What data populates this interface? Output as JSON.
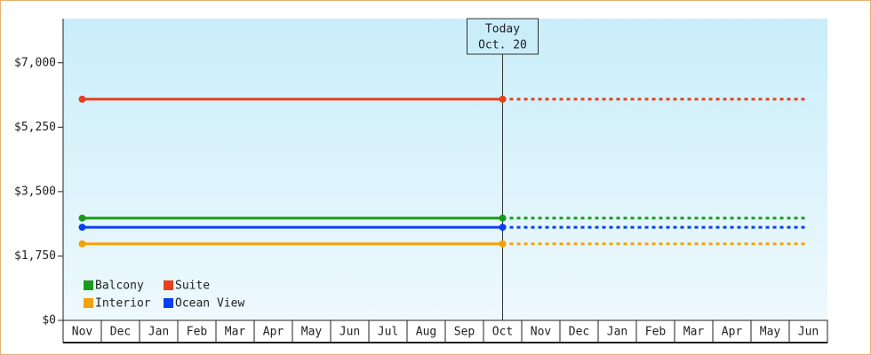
{
  "chart_data": {
    "type": "line",
    "categories": [
      "Nov",
      "Dec",
      "Jan",
      "Feb",
      "Mar",
      "Apr",
      "May",
      "Jun",
      "Jul",
      "Aug",
      "Sep",
      "Oct",
      "Nov",
      "Dec",
      "Jan",
      "Feb",
      "Mar",
      "Apr",
      "May",
      "Jun"
    ],
    "series": [
      {
        "name": "Balcony",
        "color": "#1a9a1a",
        "values": [
          2780,
          2780,
          2780,
          2780,
          2780,
          2780,
          2780,
          2780,
          2780,
          2780,
          2780,
          2780,
          2780,
          2780,
          2780,
          2780,
          2780,
          2780,
          2780,
          2780
        ]
      },
      {
        "name": "Suite",
        "color": "#e8401c",
        "values": [
          6010,
          6010,
          6010,
          6010,
          6010,
          6010,
          6010,
          6010,
          6010,
          6010,
          6010,
          6010,
          6010,
          6010,
          6010,
          6010,
          6010,
          6010,
          6010,
          6010
        ]
      },
      {
        "name": "Interior",
        "color": "#f5a20a",
        "values": [
          2080,
          2080,
          2080,
          2080,
          2080,
          2080,
          2080,
          2080,
          2080,
          2080,
          2080,
          2080,
          2080,
          2080,
          2080,
          2080,
          2080,
          2080,
          2080,
          2080
        ]
      },
      {
        "name": "Ocean View",
        "color": "#0a3ef5",
        "values": [
          2530,
          2530,
          2530,
          2530,
          2530,
          2530,
          2530,
          2530,
          2530,
          2530,
          2530,
          2530,
          2530,
          2530,
          2530,
          2530,
          2530,
          2530,
          2530,
          2530
        ]
      }
    ],
    "annotation": [
      "Today",
      "Oct. 20"
    ],
    "ylim": [
      0,
      8200
    ],
    "yticks": [
      {
        "value": 0,
        "label": "$0"
      },
      {
        "value": 1750,
        "label": "$1,750"
      },
      {
        "value": 3500,
        "label": "$3,500"
      },
      {
        "value": 5250,
        "label": "$5,250"
      },
      {
        "value": 7000,
        "label": "$7,000"
      }
    ]
  }
}
